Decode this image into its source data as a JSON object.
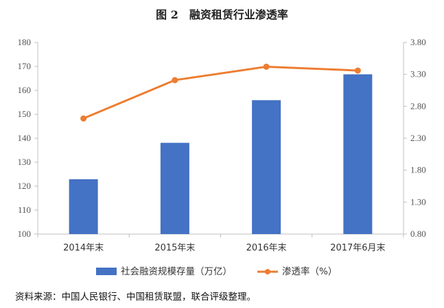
{
  "title": "图 2　融资租赁行业渗透率",
  "source_note": "资料来源：中国人民银行、中国租赁联盟，联合评级整理。",
  "chart_data": {
    "type": "bar",
    "categories": [
      "2014年末",
      "2015年末",
      "2016年末",
      "2017年6月末"
    ],
    "series": [
      {
        "name": "社会融资规模存量（万亿）",
        "type": "bar",
        "axis": "left",
        "values": [
          122.9,
          138.1,
          155.9,
          166.7
        ],
        "color": "#4472C4"
      },
      {
        "name": "渗透率（%）",
        "type": "line",
        "axis": "right",
        "values": [
          2.61,
          3.21,
          3.42,
          3.36
        ],
        "color": "#ED7D31"
      }
    ],
    "y_left": {
      "lim": [
        100,
        180
      ],
      "ticks": [
        "100",
        "110",
        "120",
        "130",
        "140",
        "150",
        "160",
        "170",
        "180"
      ]
    },
    "y_right": {
      "lim": [
        0.8,
        3.8
      ],
      "ticks": [
        "0.80",
        "1.30",
        "1.80",
        "2.30",
        "2.80",
        "3.30",
        "3.80"
      ]
    },
    "grid": false,
    "legend_position": "bottom"
  }
}
